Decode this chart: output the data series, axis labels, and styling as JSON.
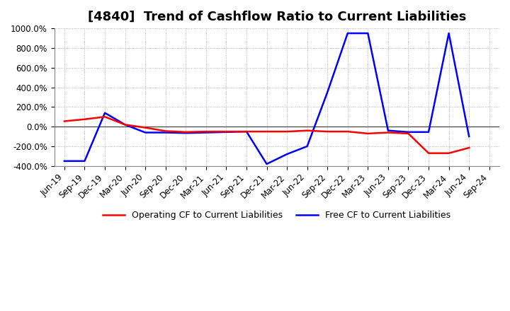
{
  "title": "[4840]  Trend of Cashflow Ratio to Current Liabilities",
  "x_labels": [
    "Jun-19",
    "Sep-19",
    "Dec-19",
    "Mar-20",
    "Jun-20",
    "Sep-20",
    "Dec-20",
    "Mar-21",
    "Jun-21",
    "Sep-21",
    "Dec-21",
    "Mar-22",
    "Jun-22",
    "Sep-22",
    "Dec-22",
    "Mar-23",
    "Jun-23",
    "Sep-23",
    "Dec-23",
    "Mar-24",
    "Jun-24",
    "Sep-24"
  ],
  "operating_cf": [
    55,
    75,
    100,
    20,
    -10,
    -45,
    -55,
    -50,
    -50,
    -50,
    -50,
    -50,
    -40,
    -50,
    -50,
    -70,
    -60,
    -70,
    -270,
    -270,
    -215,
    null
  ],
  "free_cf": [
    -350,
    -350,
    140,
    20,
    -60,
    -60,
    -65,
    -60,
    -55,
    -50,
    -380,
    -280,
    -200,
    350,
    950,
    950,
    -40,
    -55,
    -55,
    950,
    -100,
    null
  ],
  "operating_color": "#ff0000",
  "free_color": "#0000ff",
  "ylim": [
    -400,
    1000
  ],
  "yticks": [
    -400,
    -200,
    0,
    200,
    400,
    600,
    800,
    1000
  ],
  "background_color": "#ffffff",
  "grid_color": "#999999",
  "legend_op": "Operating CF to Current Liabilities",
  "legend_free": "Free CF to Current Liabilities",
  "title_fontsize": 13,
  "tick_fontsize": 8.5
}
